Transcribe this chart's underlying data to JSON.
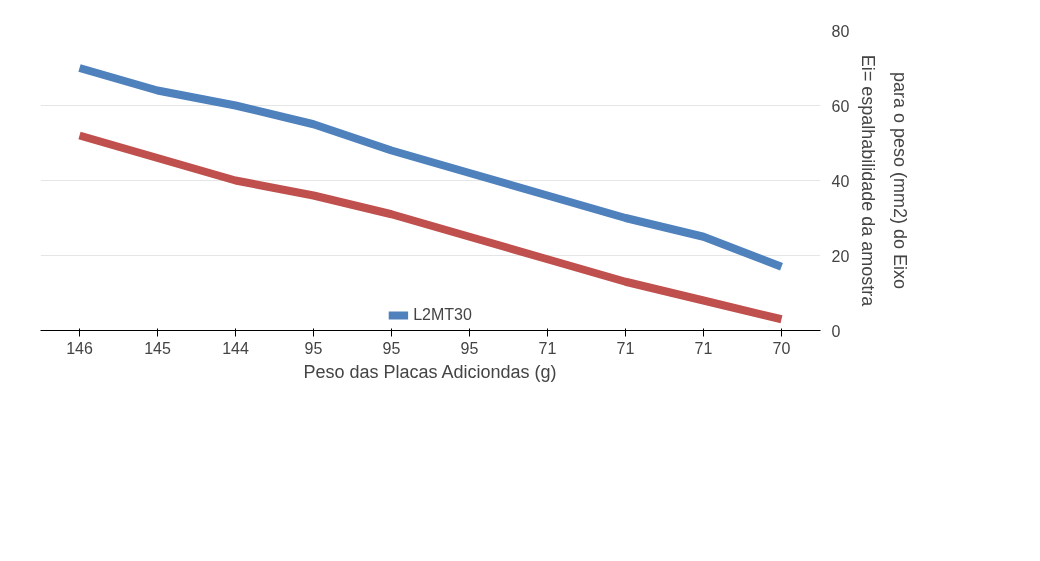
{
  "chart_data": {
    "type": "line",
    "xlabel": "Peso das Placas Adiciondas (g)",
    "ylabel": "Ei= espalhabilidade da amostra para o peso (mm2) do Eixo",
    "categories": [
      "146",
      "145",
      "144",
      "95",
      "95",
      "95",
      "71",
      "71",
      "71",
      "70"
    ],
    "series": [
      {
        "name": "L2MT30",
        "color": "#4f81bd",
        "values": [
          70,
          64,
          60,
          55,
          48,
          42,
          36,
          30,
          25,
          17
        ]
      },
      {
        "color": "#c0504d",
        "values": [
          52,
          46,
          40,
          36,
          31,
          25,
          19,
          13,
          8,
          3
        ]
      }
    ],
    "ylim": [
      0,
      80
    ],
    "yticks": [
      0,
      20,
      40,
      60,
      80
    ],
    "grid": "y",
    "legend": "bottom",
    "marker": "none",
    "line_style": "solid"
  }
}
